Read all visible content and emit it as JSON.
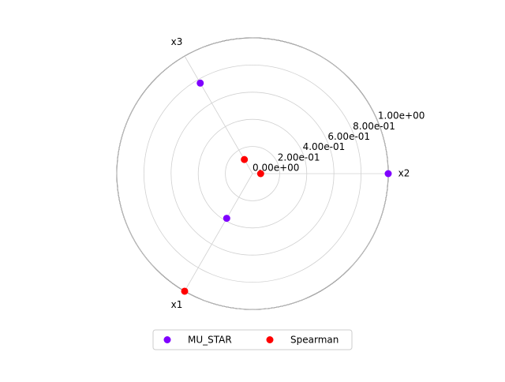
{
  "chart_data": {
    "type": "polar_scatter",
    "categories": [
      "x1",
      "x2",
      "x3"
    ],
    "rlim": [
      0,
      1
    ],
    "rticks": [
      {
        "value": 0,
        "label": "0.00e+00"
      },
      {
        "value": 0.2,
        "label": "2.00e-01"
      },
      {
        "value": 0.4,
        "label": "4.00e-01"
      },
      {
        "value": 0.6,
        "label": "6.00e-01"
      },
      {
        "value": 0.8,
        "label": "8.00e-01"
      },
      {
        "value": 1.0,
        "label": "1.00e+00"
      }
    ],
    "grid": true,
    "legend": "lower center",
    "series": [
      {
        "name": "MU_STAR",
        "color": "#7f00ff",
        "values": [
          0.38,
          1.0,
          0.77
        ]
      },
      {
        "name": "Spearman",
        "color": "#ff0000",
        "values": [
          1.0,
          0.06,
          0.12
        ]
      }
    ]
  }
}
